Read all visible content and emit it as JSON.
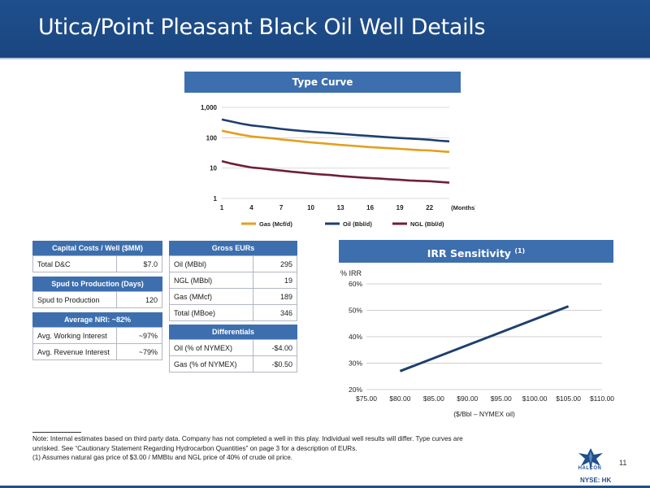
{
  "header": {
    "title": "Utica/Point Pleasant Black Oil Well Details"
  },
  "type_curve": {
    "banner": "Type Curve",
    "chart_data": {
      "type": "line",
      "title": "Type Curve",
      "x_tick_labels": [
        "1",
        "4",
        "7",
        "10",
        "13",
        "16",
        "19",
        "22"
      ],
      "x_unit_label": "(Months)",
      "y_scale": "log",
      "y_tick_labels": [
        "1,000",
        "100",
        "10",
        "1"
      ],
      "ylim": [
        1,
        1000
      ],
      "x": [
        1,
        2,
        3,
        4,
        5,
        6,
        7,
        8,
        9,
        10,
        11,
        12,
        13,
        14,
        15,
        16,
        17,
        18,
        19,
        20,
        21,
        22,
        23,
        24
      ],
      "series": [
        {
          "name": "Gas (Mcf/d)",
          "color": "#e3a020",
          "values": [
            170,
            145,
            125,
            110,
            103,
            96,
            88,
            82,
            76,
            70,
            66,
            62,
            58,
            55,
            52,
            49,
            47,
            45,
            43,
            41,
            39,
            38,
            36,
            34
          ]
        },
        {
          "name": "Oil (Bbl/d)",
          "color": "#1e3f6e",
          "values": [
            400,
            340,
            290,
            255,
            235,
            215,
            195,
            180,
            168,
            158,
            150,
            142,
            134,
            127,
            120,
            114,
            108,
            103,
            98,
            94,
            90,
            86,
            80,
            76
          ]
        },
        {
          "name": "NGL (Bbl/d)",
          "color": "#6e1f3a",
          "values": [
            17,
            14,
            12,
            10.5,
            9.8,
            9,
            8.3,
            7.6,
            7.1,
            6.6,
            6.2,
            5.9,
            5.5,
            5.2,
            4.9,
            4.7,
            4.5,
            4.3,
            4.1,
            3.9,
            3.8,
            3.7,
            3.5,
            3.3
          ]
        }
      ],
      "legend_position": "bottom",
      "grid": true
    }
  },
  "capital_costs": {
    "title": "Capital Costs / Well ($MM)",
    "rows": [
      {
        "label": "Total D&C",
        "value": "$7.0"
      }
    ]
  },
  "spud": {
    "title": "Spud to Production (Days)",
    "rows": [
      {
        "label": "Spud to Production",
        "value": "120"
      }
    ]
  },
  "nri": {
    "title": "Average NRI: ~82%",
    "rows": [
      {
        "label": "Avg. Working Interest",
        "value": "~97%"
      },
      {
        "label": "Avg. Revenue Interest",
        "value": "~79%"
      }
    ]
  },
  "gross_eurs": {
    "title": "Gross EURs",
    "rows": [
      {
        "label": "Oil (MBbl)",
        "value": "295"
      },
      {
        "label": "NGL (MBbl)",
        "value": "19"
      },
      {
        "label": "Gas (MMcf)",
        "value": "189"
      },
      {
        "label": "Total (MBoe)",
        "value": "346"
      }
    ]
  },
  "differentials": {
    "title": "Differentials",
    "rows": [
      {
        "label": "Oil (% of NYMEX)",
        "value": "-$4.00"
      },
      {
        "label": "Gas (% of NYMEX)",
        "value": "-$0.50"
      }
    ]
  },
  "irr": {
    "banner": "IRR Sensitivity",
    "banner_note": "(1)",
    "chart_data": {
      "type": "line",
      "title": "IRR Sensitivity",
      "ylabel": "% IRR",
      "xlabel": "($/Bbl – NYMEX oil)",
      "x_tick_labels": [
        "$75.00",
        "$80.00",
        "$85.00",
        "$90.00",
        "$95.00",
        "$100.00",
        "$105.00",
        "$110.00"
      ],
      "y_tick_labels": [
        "20%",
        "30%",
        "40%",
        "50%",
        "60%"
      ],
      "xlim": [
        75,
        110
      ],
      "ylim": [
        20,
        60
      ],
      "x": [
        80,
        105
      ],
      "series": [
        {
          "values": [
            27,
            51.5
          ],
          "color": "#1e3f6e"
        }
      ],
      "grid": true
    }
  },
  "footnotes": {
    "line1": "Note: Internal estimates based on third party data. Company has not completed a well in this play. Individual well results will differ. Type curves are",
    "line2": "unrisked.  See “Cautionary Statement Regarding Hydrocarbon Quantities” on page 3 for a description of EURs.",
    "line3": "(1)    Assumes natural gas price of $3.00 / MMBtu and NGL price of 40% of crude oil price."
  },
  "page_number": "11",
  "logo": {
    "name": "HALCÓN",
    "ticker": "NYSE: HK",
    "icon": "hawk-logo-icon"
  }
}
